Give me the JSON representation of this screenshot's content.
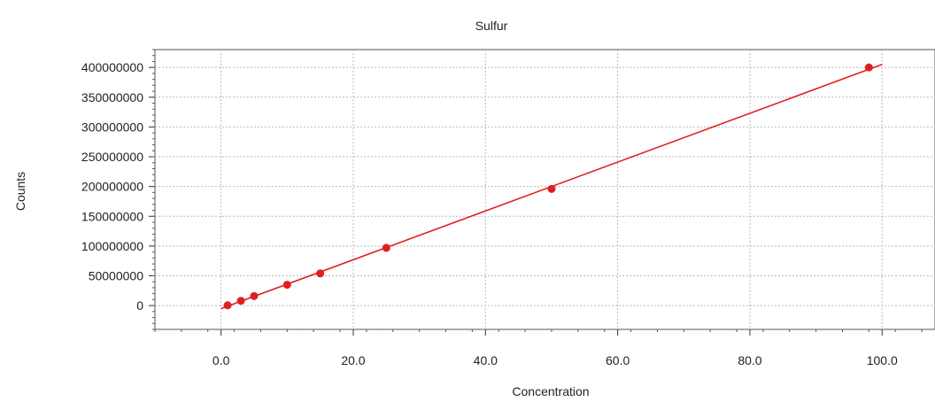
{
  "chart_data": {
    "type": "scatter",
    "title": "Sulfur",
    "xlabel": "Concentration",
    "ylabel": "Counts",
    "xlim": [
      -10,
      108
    ],
    "ylim": [
      -40000000,
      430000000
    ],
    "x_ticks": [
      0,
      20,
      40,
      60,
      80,
      100
    ],
    "x_tick_labels": [
      "0.0",
      "20.0",
      "40.0",
      "60.0",
      "80.0",
      "100.0"
    ],
    "y_ticks": [
      0,
      50000000,
      100000000,
      150000000,
      200000000,
      250000000,
      300000000,
      350000000,
      400000000
    ],
    "y_tick_labels": [
      "0",
      "50000000",
      "100000000",
      "150000000",
      "200000000",
      "250000000",
      "300000000",
      "350000000",
      "400000000"
    ],
    "grid": true,
    "series": [
      {
        "color": "#e02020",
        "points": [
          {
            "x": 1,
            "y": 500000
          },
          {
            "x": 3,
            "y": 8000000
          },
          {
            "x": 5,
            "y": 16000000
          },
          {
            "x": 10,
            "y": 35000000
          },
          {
            "x": 15,
            "y": 54000000
          },
          {
            "x": 25,
            "y": 97000000
          },
          {
            "x": 50,
            "y": 196000000
          },
          {
            "x": 98,
            "y": 400000000
          }
        ]
      }
    ],
    "fit_line": {
      "color": "#e02020",
      "x": [
        0,
        100
      ],
      "y": [
        -5000000,
        405000000
      ]
    }
  }
}
